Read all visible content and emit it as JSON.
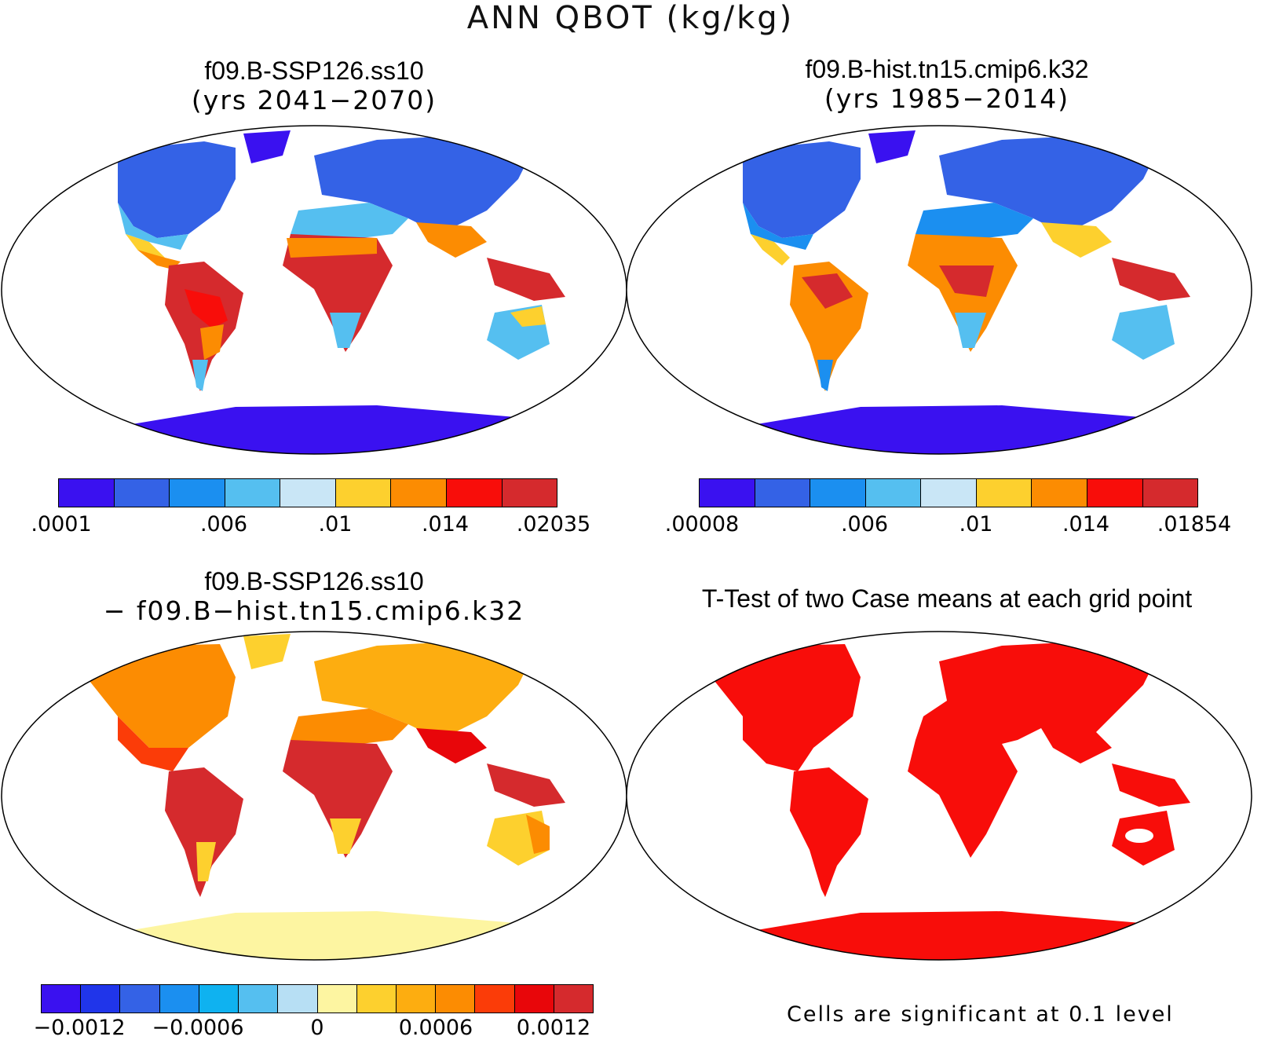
{
  "figure": {
    "title": "ANN QBOT (kg/kg)"
  },
  "panels": {
    "case": {
      "title": "f09.B-SSP126.ss10",
      "subtitle": "(yrs 2041−2070)",
      "colorbar": {
        "colors": [
          "#3a11f0",
          "#3462e6",
          "#1b8ff0",
          "#55bff0",
          "#c9e6f6",
          "#fdd02e",
          "#fc8c02",
          "#f80d0a",
          "#d52a2d"
        ],
        "labels": [
          ".0001",
          ".006",
          ".01",
          ".014",
          ".02035"
        ]
      }
    },
    "control": {
      "title": "f09.B-hist.tn15.cmip6.k32",
      "subtitle": "(yrs 1985−2014)",
      "colorbar": {
        "colors": [
          "#3a11f0",
          "#3462e6",
          "#1b8ff0",
          "#55bff0",
          "#c9e6f6",
          "#fdd02e",
          "#fc8c02",
          "#f80d0a",
          "#d52a2d"
        ],
        "labels": [
          ".00008",
          ".006",
          ".01",
          ".014",
          ".01854"
        ]
      }
    },
    "difference": {
      "title": "f09.B-SSP126.ss10",
      "subtitle": "− f09.B−hist.tn15.cmip6.k32",
      "colorbar": {
        "colors": [
          "#3a11f0",
          "#2035ea",
          "#3462e6",
          "#1b8ff0",
          "#0fb2f0",
          "#55bff0",
          "#b7dff4",
          "#fdf5a1",
          "#fdd02e",
          "#fdad10",
          "#fc8c02",
          "#fb3c08",
          "#e8060a",
          "#d52a2d"
        ],
        "labels": [
          "−0.0012",
          "−0.0006",
          "0",
          "0.0006",
          "0.0012"
        ]
      }
    },
    "ttest": {
      "title": "T-Test of two Case means at each grid point",
      "note": "Cells are significant at 0.1 level",
      "significant_color": "#f80d0a"
    }
  }
}
